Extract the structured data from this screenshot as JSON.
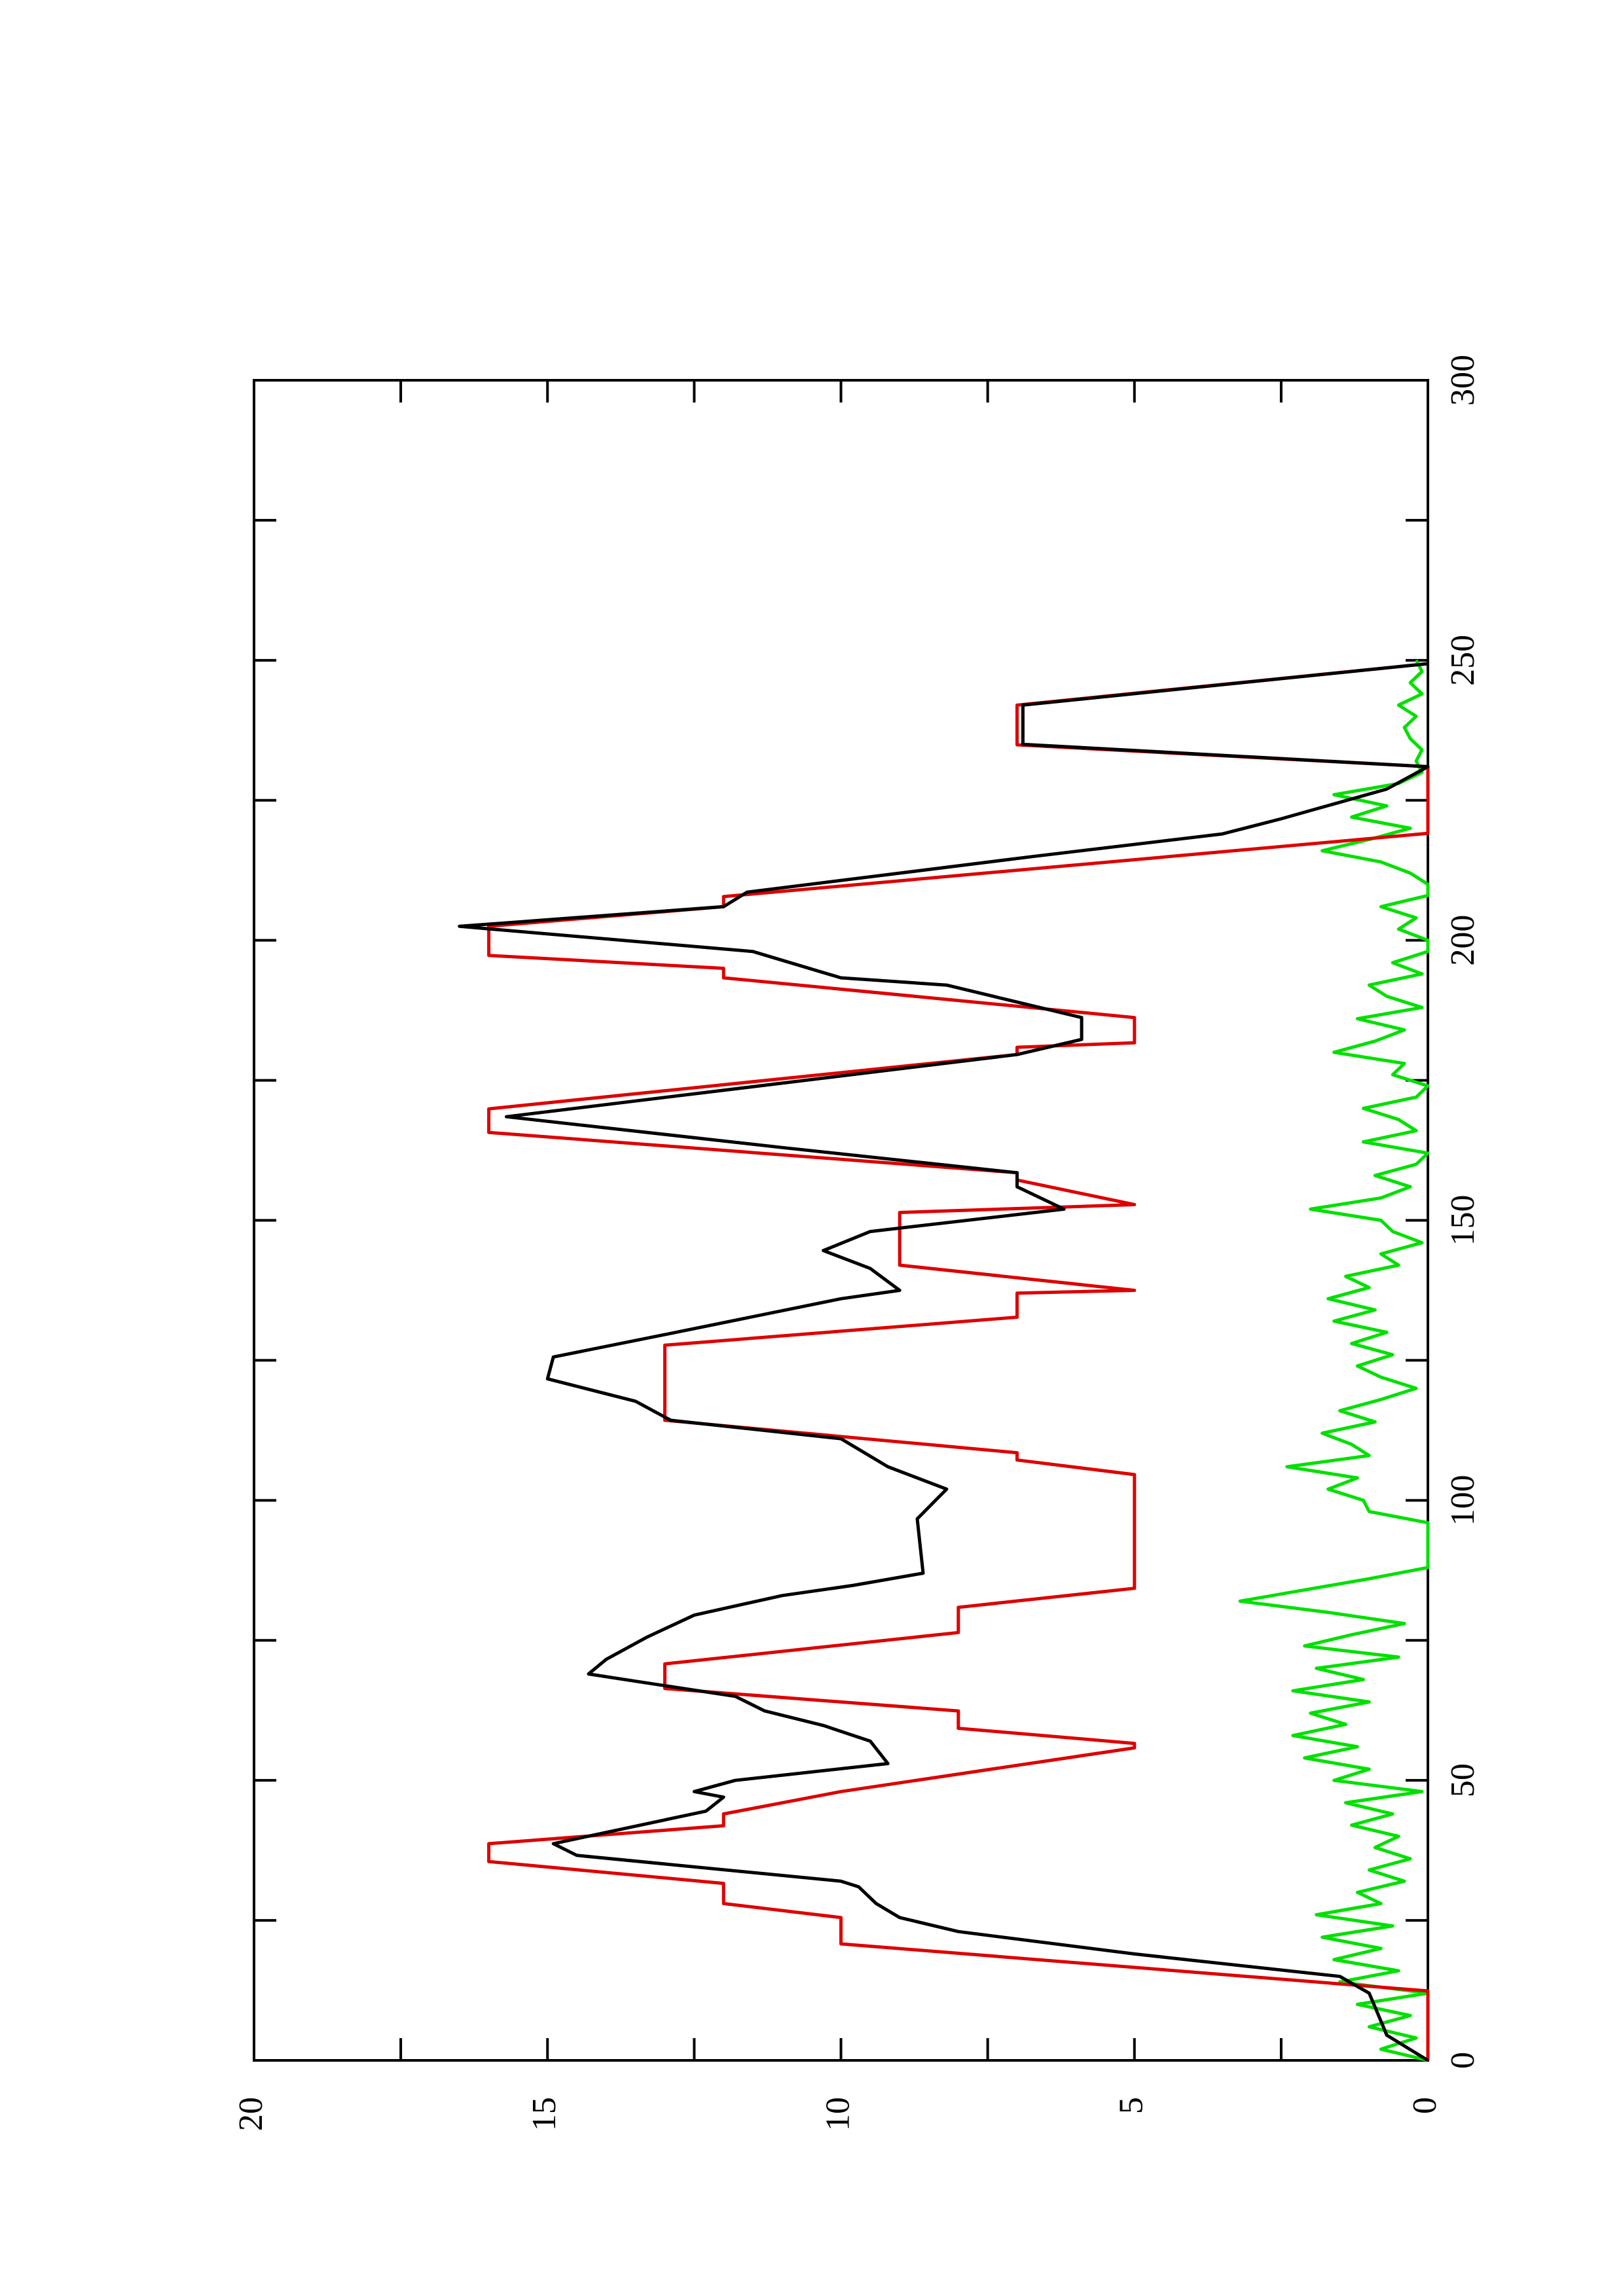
{
  "chart_data": {
    "type": "line",
    "xlim": [
      0,
      300
    ],
    "xticks": [
      0,
      50,
      100,
      150,
      200,
      250,
      300
    ],
    "minor_xticks": [
      25,
      75,
      125,
      175,
      225,
      275
    ],
    "ylim": [
      0,
      20
    ],
    "yticks": [
      0,
      5,
      10,
      15,
      20
    ],
    "minor_yticks": [
      2.5,
      7.5,
      12.5,
      17.5
    ],
    "rotated": true,
    "series": [
      {
        "color": "#00e000",
        "x": [
          0,
          2,
          4,
          6,
          8,
          10,
          12,
          14,
          16,
          18,
          20,
          22,
          24,
          26,
          28,
          30,
          32,
          34,
          36,
          38,
          40,
          42,
          44,
          46,
          48,
          50,
          52,
          54,
          56,
          58,
          60,
          62,
          64,
          66,
          68,
          70,
          72,
          74,
          76,
          78,
          80,
          82,
          84,
          86,
          88,
          96,
          98,
          100,
          102,
          104,
          106,
          108,
          110,
          112,
          114,
          116,
          118,
          120,
          122,
          124,
          126,
          128,
          130,
          132,
          134,
          136,
          138,
          140,
          142,
          144,
          146,
          148,
          150,
          152,
          154,
          156,
          158,
          160,
          162,
          164,
          166,
          168,
          170,
          172,
          174,
          176,
          178,
          180,
          182,
          184,
          186,
          188,
          190,
          192,
          194,
          196,
          198,
          200,
          202,
          204,
          206,
          208,
          210,
          212,
          214,
          216,
          218,
          220,
          222,
          224,
          226,
          228,
          230,
          232,
          234,
          236,
          238,
          240,
          242,
          244,
          246,
          248,
          250
        ],
        "values": [
          0,
          0.8,
          0.2,
          1,
          0.3,
          1.2,
          0,
          1.5,
          0.5,
          1.6,
          0.8,
          1.8,
          0.6,
          1.9,
          0.8,
          1.2,
          0.4,
          1.0,
          0.3,
          0.9,
          0.5,
          1.3,
          0.6,
          1.4,
          0.1,
          1.6,
          1.0,
          2.1,
          1.2,
          2.3,
          1.4,
          2.0,
          1.0,
          2.3,
          1.1,
          1.9,
          0.5,
          2.1,
          1.3,
          0.4,
          1.7,
          3.2,
          2.1,
          1.0,
          0,
          0,
          1.0,
          1.1,
          1.7,
          1.2,
          2.4,
          1.0,
          1.3,
          1.8,
          0.9,
          1.5,
          0.8,
          0.2,
          0.8,
          1.2,
          0.6,
          1.3,
          0.7,
          1.6,
          0.9,
          1.7,
          1.0,
          1.4,
          0.5,
          0.8,
          0.1,
          0.6,
          0.8,
          2.0,
          0.8,
          0.3,
          0.9,
          0.2,
          0,
          1.1,
          0.2,
          0.5,
          1.1,
          0.2,
          0,
          0.6,
          0.4,
          1.6,
          0.9,
          0.4,
          1.2,
          0.1,
          0.7,
          1.0,
          0.1,
          0.6,
          0,
          0,
          0.5,
          0.2,
          0.8,
          0,
          0,
          0.3,
          0.8,
          1.8,
          1.0,
          0.3,
          1.3,
          0.7,
          1.6,
          0.5,
          0.1,
          0.2,
          0.1,
          0.3,
          0.4,
          0.2,
          0.5,
          0.1,
          0.3,
          0.1,
          0.2
        ]
      },
      {
        "color": "#dd0000",
        "x": [
          0,
          12.4,
          20.8,
          25.5,
          28,
          31.6,
          35.5,
          38.7,
          41.9,
          44,
          48,
          55.8,
          56.6,
          59.3,
          62.4,
          66.4,
          70.8,
          76.4,
          80.9,
          84.3,
          104.6,
          107.2,
          108.5,
          114.3,
          127.7,
          132.7,
          137,
          137.5,
          142,
          151.4,
          152.8,
          157.2,
          158.5,
          165.7,
          169.9,
          179.6,
          180.9,
          181.7,
          186.2,
          193.3,
          195,
          197.3,
          202.5,
          206,
          207.8,
          219.1,
          231,
          234.9,
          242,
          249.4
        ],
        "values": [
          0,
          0,
          10,
          10,
          12,
          12,
          16,
          16,
          12,
          12,
          10,
          5,
          5,
          8,
          8,
          13,
          13,
          8,
          8,
          5,
          5,
          7,
          7,
          13,
          13,
          7,
          7,
          5,
          9,
          9,
          5,
          7,
          7,
          16,
          16,
          7,
          7,
          5,
          5,
          12,
          12,
          16,
          16,
          12,
          12,
          0,
          0,
          7,
          7,
          0
        ]
      },
      {
        "color": "#000000",
        "x": [
          0,
          4.5,
          7,
          12,
          15,
          19,
          23,
          25.5,
          28,
          31,
          32,
          36.6,
          38.7,
          44.5,
          47,
          48,
          50,
          53,
          57,
          59.8,
          62.4,
          65,
          67.7,
          69,
          71.6,
          75.6,
          79.5,
          83,
          84.8,
          87,
          96.7,
          102,
          106,
          111,
          114.3,
          117.7,
          121.7,
          125.6,
          129.6,
          136,
          137.5,
          141.4,
          144.6,
          148,
          152,
          156,
          158.5,
          163,
          168.5,
          179.6,
          182.3,
          186.2,
          192,
          193.3,
          198,
          202.5,
          206,
          208.6,
          215,
          219,
          221.7,
          227,
          231,
          235,
          242,
          249.4
        ],
        "values": [
          0,
          0.7,
          0.8,
          1,
          1.5,
          5,
          8,
          9,
          9.4,
          9.7,
          10,
          14.5,
          14.9,
          12.3,
          12,
          12.5,
          11.8,
          9.2,
          9.5,
          10.3,
          11.3,
          11.8,
          13.5,
          14.3,
          14,
          13.3,
          12.5,
          11,
          9.8,
          8.6,
          8.7,
          8.2,
          9.2,
          10,
          12.9,
          13.5,
          15,
          14.9,
          13,
          10,
          9,
          9.5,
          10.3,
          9.5,
          6.2,
          7,
          7,
          11,
          15.7,
          7,
          5.9,
          5.9,
          8.2,
          10,
          11.5,
          16.5,
          12,
          11.6,
          6.7,
          3.5,
          2.5,
          0.7,
          0,
          6.9,
          6.9,
          0
        ]
      }
    ]
  }
}
